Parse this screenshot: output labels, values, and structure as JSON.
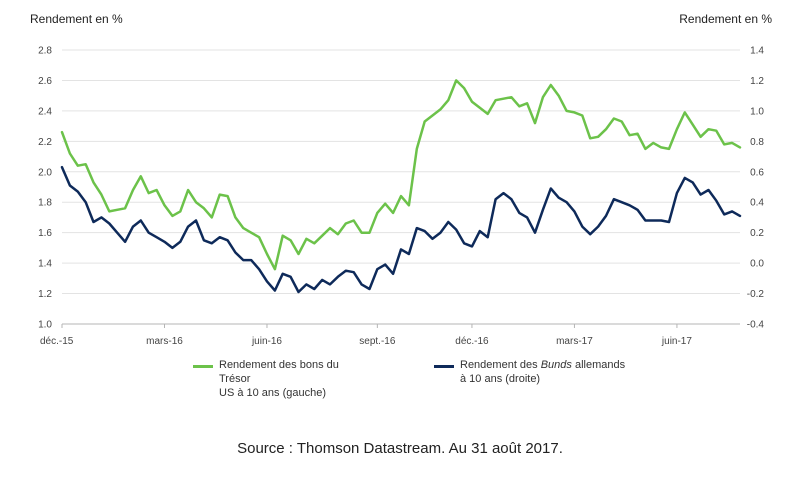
{
  "chart_data": {
    "type": "line",
    "left_axis": {
      "title": "Rendement en %",
      "ylim": [
        1.0,
        2.8
      ],
      "ticks": [
        "1.0",
        "1.2",
        "1.4",
        "1.6",
        "1.8",
        "2.0",
        "2.2",
        "2.4",
        "2.6",
        "2.8"
      ]
    },
    "right_axis": {
      "title": "Rendement en %",
      "ylim": [
        -0.4,
        1.4
      ],
      "ticks": [
        "-0.4",
        "-0.2",
        "0.0",
        "0.2",
        "0.4",
        "0.6",
        "0.8",
        "1.0",
        "1.2",
        "1.4"
      ]
    },
    "x_tick_labels": [
      {
        "index": 0,
        "label": "déc.-15"
      },
      {
        "index": 13,
        "label": "mars-16"
      },
      {
        "index": 26,
        "label": "juin-16"
      },
      {
        "index": 40,
        "label": "sept.-16"
      },
      {
        "index": 52,
        "label": "déc.-16"
      },
      {
        "index": 65,
        "label": "mars-17"
      },
      {
        "index": 78,
        "label": "juin-17"
      }
    ],
    "series": [
      {
        "name": "US 10Y",
        "legend_line1": "Rendement des bons du Trésor",
        "legend_line2": "US à 10 ans (gauche)",
        "axis": "left",
        "color": "#6cc24a",
        "values": [
          2.26,
          2.12,
          2.04,
          2.05,
          1.93,
          1.85,
          1.74,
          1.75,
          1.76,
          1.88,
          1.97,
          1.86,
          1.88,
          1.78,
          1.71,
          1.74,
          1.88,
          1.8,
          1.76,
          1.7,
          1.85,
          1.84,
          1.7,
          1.63,
          1.6,
          1.57,
          1.46,
          1.36,
          1.58,
          1.55,
          1.46,
          1.56,
          1.53,
          1.58,
          1.63,
          1.59,
          1.66,
          1.68,
          1.6,
          1.6,
          1.73,
          1.79,
          1.73,
          1.84,
          1.78,
          2.15,
          2.33,
          2.37,
          2.41,
          2.47,
          2.6,
          2.55,
          2.46,
          2.42,
          2.38,
          2.47,
          2.48,
          2.49,
          2.43,
          2.45,
          2.32,
          2.49,
          2.57,
          2.5,
          2.4,
          2.39,
          2.37,
          2.22,
          2.23,
          2.28,
          2.35,
          2.33,
          2.24,
          2.25,
          2.15,
          2.19,
          2.16,
          2.15,
          2.28,
          2.39,
          2.31,
          2.23,
          2.28,
          2.27,
          2.18,
          2.19,
          2.16
        ]
      },
      {
        "name": "Bund 10Y",
        "legend_pre": "Rendement des ",
        "legend_italic": "Bunds",
        "legend_post": " allemands",
        "legend_line2": "à 10 ans (droite)",
        "axis": "right",
        "color": "#0e2a5a",
        "values": [
          0.63,
          0.51,
          0.47,
          0.4,
          0.27,
          0.3,
          0.26,
          0.2,
          0.14,
          0.24,
          0.28,
          0.2,
          0.17,
          0.14,
          0.1,
          0.14,
          0.24,
          0.28,
          0.15,
          0.13,
          0.17,
          0.15,
          0.07,
          0.02,
          0.02,
          -0.04,
          -0.12,
          -0.18,
          -0.07,
          -0.09,
          -0.19,
          -0.14,
          -0.17,
          -0.11,
          -0.14,
          -0.09,
          -0.05,
          -0.06,
          -0.14,
          -0.17,
          -0.04,
          -0.01,
          -0.07,
          0.09,
          0.06,
          0.23,
          0.21,
          0.16,
          0.2,
          0.27,
          0.22,
          0.13,
          0.11,
          0.21,
          0.17,
          0.42,
          0.46,
          0.42,
          0.33,
          0.3,
          0.2,
          0.35,
          0.49,
          0.43,
          0.4,
          0.34,
          0.24,
          0.19,
          0.24,
          0.31,
          0.42,
          0.4,
          0.38,
          0.35,
          0.28,
          0.28,
          0.28,
          0.27,
          0.46,
          0.56,
          0.53,
          0.45,
          0.48,
          0.41,
          0.32,
          0.34,
          0.31
        ]
      }
    ],
    "source": "Source : Thomson Datastream. Au 31 août 2017."
  }
}
